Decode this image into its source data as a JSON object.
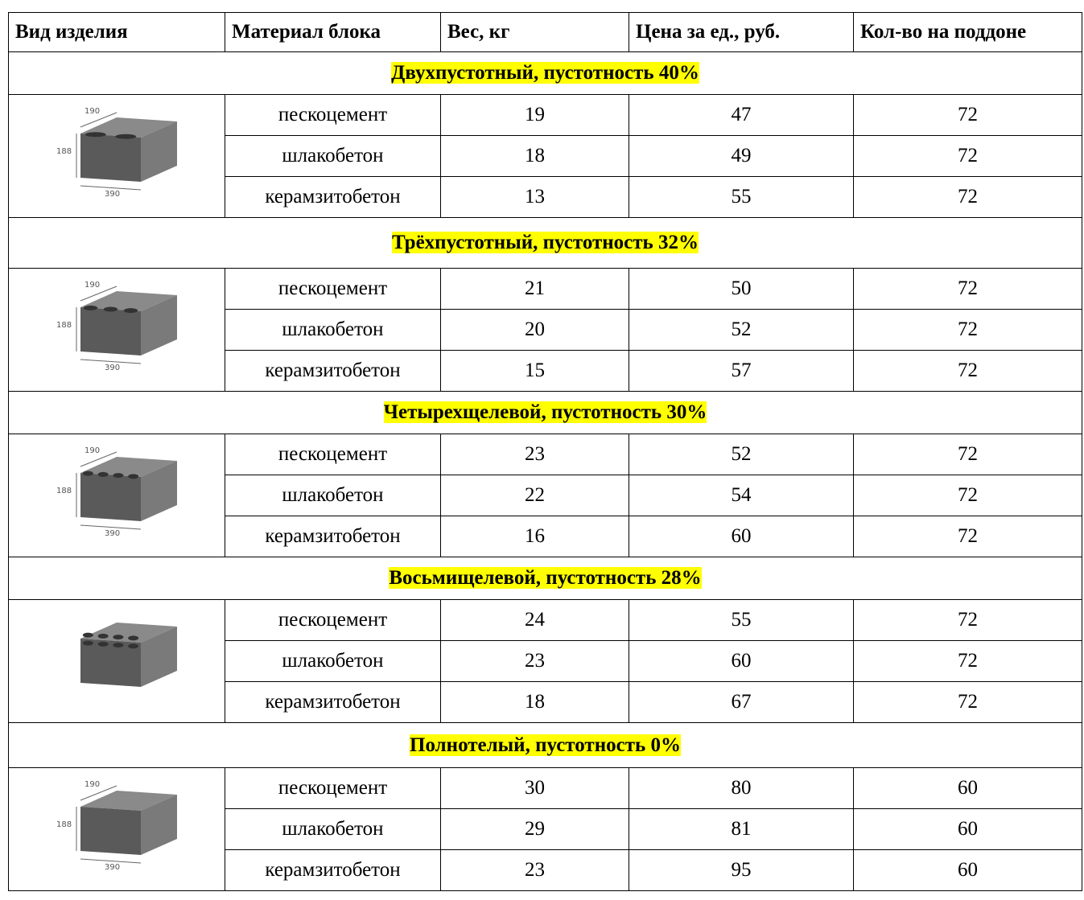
{
  "header": [
    "Вид изделия",
    "Материал блока",
    "Вес, кг",
    "Цена за ед., руб.",
    "Кол-во на поддоне"
  ],
  "groups": [
    {
      "title": "Двухпустотный, пустотность 40%",
      "image_labels": [
        "190",
        "188",
        "390"
      ],
      "rows": [
        [
          "пескоцемент",
          19,
          47,
          72
        ],
        [
          "шлакобетон",
          18,
          49,
          72
        ],
        [
          "керамзитобетон",
          13,
          55,
          72
        ]
      ]
    },
    {
      "title": "Трёхпустотный, пустотность 32%",
      "image_labels": [
        "190",
        "188",
        "390"
      ],
      "rows": [
        [
          "пескоцемент",
          21,
          50,
          72
        ],
        [
          "шлакобетон",
          20,
          52,
          72
        ],
        [
          "керамзитобетон",
          15,
          57,
          72
        ]
      ]
    },
    {
      "title": "Четырехщелевой, пустотность 30%",
      "image_labels": [
        "190",
        "188",
        "390"
      ],
      "rows": [
        [
          "пескоцемент",
          23,
          52,
          72
        ],
        [
          "шлакобетон",
          22,
          54,
          72
        ],
        [
          "керамзитобетон",
          16,
          60,
          72
        ]
      ]
    },
    {
      "title": "Восьмищелевой, пустотность 28%",
      "rows": [
        [
          "пескоцемент",
          24,
          55,
          72
        ],
        [
          "шлакобетон",
          23,
          60,
          72
        ],
        [
          "керамзитобетон",
          18,
          67,
          72
        ]
      ]
    },
    {
      "title": "Полнотелый, пустотность 0%",
      "image_labels": [
        "190",
        "188",
        "390"
      ],
      "rows": [
        [
          "пескоцемент",
          30,
          80,
          60
        ],
        [
          "шлакобетон",
          29,
          81,
          60
        ],
        [
          "керамзитобетон",
          23,
          95,
          60
        ]
      ]
    }
  ]
}
